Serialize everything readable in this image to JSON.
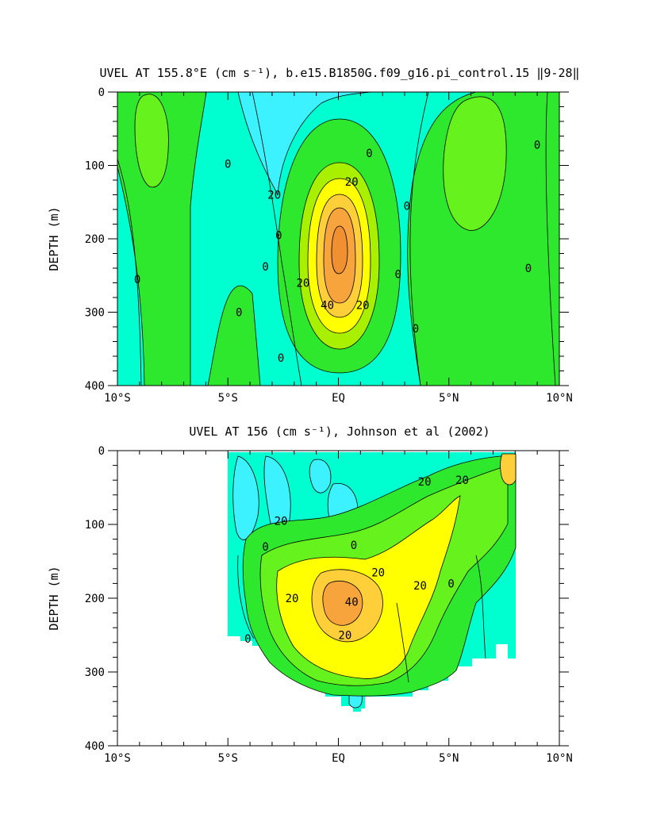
{
  "chart_data": [
    {
      "type": "contour",
      "title": "UVEL AT 155.8°E (cm s⁻¹), b.e15.B1850G.f09_g16.pi_control.15 ‖9-28‖",
      "xlabel": "",
      "ylabel": "DEPTH (m)",
      "xlim": [
        -10,
        10
      ],
      "ylim": [
        400,
        0
      ],
      "x_ticks": [
        {
          "value": -10,
          "label": "10°S"
        },
        {
          "value": -5,
          "label": "5°S"
        },
        {
          "value": 0,
          "label": "EQ"
        },
        {
          "value": 5,
          "label": "5°N"
        },
        {
          "value": 10,
          "label": "10°N"
        }
      ],
      "y_ticks": [
        {
          "value": 0,
          "label": "0"
        },
        {
          "value": 100,
          "label": "100"
        },
        {
          "value": 200,
          "label": "200"
        },
        {
          "value": 300,
          "label": "300"
        },
        {
          "value": 400,
          "label": "400"
        }
      ],
      "contour_interval": 10,
      "contour_labels": [
        {
          "lon": -9.1,
          "depth": 255,
          "text": "0"
        },
        {
          "lon": -3.3,
          "depth": 238,
          "text": "0"
        },
        {
          "lon": -5.0,
          "depth": 98,
          "text": "0"
        },
        {
          "lon": -4.5,
          "depth": 300,
          "text": "0"
        },
        {
          "lon": -2.7,
          "depth": 195,
          "text": "0"
        },
        {
          "lon": -2.6,
          "depth": 362,
          "text": "0"
        },
        {
          "lon": -2.9,
          "depth": 140,
          "text": "20"
        },
        {
          "lon": 1.4,
          "depth": 83,
          "text": "0"
        },
        {
          "lon": 0.6,
          "depth": 122,
          "text": "20"
        },
        {
          "lon": -1.6,
          "depth": 260,
          "text": "20"
        },
        {
          "lon": -0.5,
          "depth": 290,
          "text": "40"
        },
        {
          "lon": 1.1,
          "depth": 290,
          "text": "20"
        },
        {
          "lon": 3.1,
          "depth": 155,
          "text": "0"
        },
        {
          "lon": 2.7,
          "depth": 248,
          "text": "0"
        },
        {
          "lon": 3.5,
          "depth": 322,
          "text": "0"
        },
        {
          "lon": 9.0,
          "depth": 72,
          "text": "0"
        },
        {
          "lon": 8.6,
          "depth": 240,
          "text": "0"
        }
      ]
    },
    {
      "type": "contour",
      "title": "UVEL AT 156 (cm s⁻¹), Johnson et al (2002)",
      "xlabel": "",
      "ylabel": "DEPTH (m)",
      "xlim": [
        -10,
        10
      ],
      "ylim": [
        400,
        0
      ],
      "x_ticks": [
        {
          "value": -10,
          "label": "10°S"
        },
        {
          "value": -5,
          "label": "5°S"
        },
        {
          "value": 0,
          "label": "EQ"
        },
        {
          "value": 5,
          "label": "5°N"
        },
        {
          "value": 10,
          "label": "10°N"
        }
      ],
      "y_ticks": [
        {
          "value": 0,
          "label": "0"
        },
        {
          "value": 100,
          "label": "100"
        },
        {
          "value": 200,
          "label": "200"
        },
        {
          "value": 300,
          "label": "300"
        },
        {
          "value": 400,
          "label": "400"
        }
      ],
      "data_extent_lon": [
        -5,
        8
      ],
      "contour_interval": 10,
      "contour_labels": [
        {
          "lon": -2.6,
          "depth": 95,
          "text": "20"
        },
        {
          "lon": -3.3,
          "depth": 130,
          "text": "0"
        },
        {
          "lon": 0.7,
          "depth": 128,
          "text": "0"
        },
        {
          "lon": 1.8,
          "depth": 165,
          "text": "20"
        },
        {
          "lon": -2.1,
          "depth": 200,
          "text": "20"
        },
        {
          "lon": 0.6,
          "depth": 205,
          "text": "40"
        },
        {
          "lon": 0.3,
          "depth": 250,
          "text": "20"
        },
        {
          "lon": 3.7,
          "depth": 183,
          "text": "20"
        },
        {
          "lon": 3.9,
          "depth": 42,
          "text": "20"
        },
        {
          "lon": 5.6,
          "depth": 40,
          "text": "20"
        },
        {
          "lon": -4.1,
          "depth": 255,
          "text": "0"
        },
        {
          "lon": 5.1,
          "depth": 180,
          "text": "0"
        }
      ]
    }
  ]
}
